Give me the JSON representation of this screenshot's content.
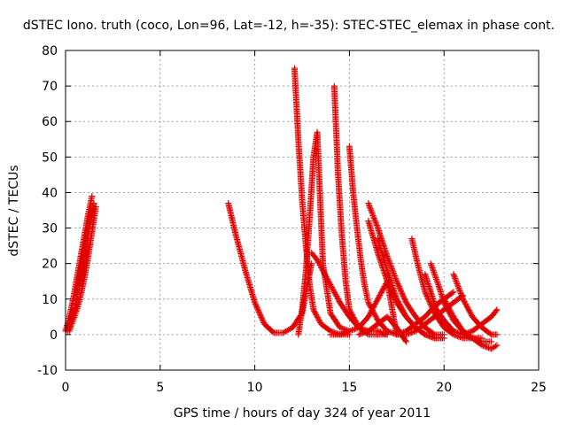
{
  "chart_data": {
    "type": "scatter",
    "title": "dSTEC Iono. truth (coco, Lon=96, Lat=-12, h=-35): STEC-STEC_elemax in phase cont.",
    "xlabel": "GPS time / hours of day 324 of year 2011",
    "ylabel": "dSTEC  / TECUs",
    "xlim": [
      0,
      25
    ],
    "ylim": [
      -10,
      80
    ],
    "xticks": [
      0,
      5,
      10,
      15,
      20,
      25
    ],
    "yticks": [
      -10,
      0,
      10,
      20,
      30,
      40,
      50,
      60,
      70,
      80
    ],
    "xtick_labels": [
      "0",
      "5",
      "10",
      "15",
      "20",
      "25"
    ],
    "ytick_labels": [
      "-10",
      "0",
      "10",
      "20",
      "30",
      "40",
      "50",
      "60",
      "70",
      "80"
    ],
    "grid": true,
    "marker": "+",
    "color": "#ff0000",
    "series": [
      {
        "x": [
          0.0,
          0.2,
          0.4,
          0.6,
          0.8,
          1.0,
          1.2,
          1.4
        ],
        "y": [
          1,
          5,
          10,
          16,
          22,
          28,
          34,
          39
        ]
      },
      {
        "x": [
          0.1,
          0.3,
          0.5,
          0.7,
          0.9,
          1.1,
          1.3,
          1.5
        ],
        "y": [
          1,
          4,
          8,
          13,
          19,
          25,
          31,
          37
        ]
      },
      {
        "x": [
          0.2,
          0.4,
          0.6,
          0.8,
          1.0,
          1.2,
          1.4,
          1.6
        ],
        "y": [
          1,
          4,
          7,
          11,
          16,
          22,
          29,
          36
        ]
      },
      {
        "x": [
          8.6,
          9.0,
          9.5,
          10.0,
          10.5,
          11.0,
          11.5,
          12.0,
          12.5,
          13.0
        ],
        "y": [
          37,
          28,
          18,
          9,
          3,
          0.5,
          0.5,
          2,
          6,
          20
        ]
      },
      {
        "x": [
          12.1,
          12.3,
          12.5,
          12.7,
          12.9,
          13.1,
          13.5,
          14.0,
          14.5,
          15.0
        ],
        "y": [
          75,
          55,
          38,
          25,
          14,
          7,
          3,
          1,
          0,
          0
        ]
      },
      {
        "x": [
          12.3,
          12.5,
          12.7,
          12.9,
          13.1,
          13.3,
          13.6,
          14.0,
          14.5,
          15.0
        ],
        "y": [
          0,
          7,
          18,
          33,
          50,
          57,
          20,
          6,
          2,
          1
        ]
      },
      {
        "x": [
          14.2,
          14.4,
          14.6,
          14.8,
          15.0,
          15.5,
          16.0,
          16.5,
          17.0
        ],
        "y": [
          70,
          45,
          28,
          15,
          7,
          2,
          0,
          0,
          0
        ]
      },
      {
        "x": [
          15.0,
          15.2,
          15.4,
          15.6,
          15.8,
          16.0,
          16.5,
          17.0,
          17.5,
          18.0
        ],
        "y": [
          53,
          40,
          30,
          21,
          14,
          9,
          4,
          1,
          0,
          0
        ]
      },
      {
        "x": [
          13.0,
          13.3,
          13.7,
          14.0,
          14.5,
          15.0,
          15.5,
          16.0,
          16.5,
          17.0
        ],
        "y": [
          23,
          21,
          17,
          14,
          9,
          5,
          2,
          1,
          1,
          0
        ]
      },
      {
        "x": [
          14.0,
          14.5,
          15.0,
          15.5,
          16.0,
          16.5,
          17.0,
          17.5
        ],
        "y": [
          0,
          0,
          1,
          2,
          5,
          10,
          15,
          0
        ]
      },
      {
        "x": [
          16.0,
          16.5,
          17.0,
          17.5,
          18.0,
          18.5,
          19.0,
          19.5,
          20.0
        ],
        "y": [
          37,
          30,
          22,
          15,
          9,
          5,
          2,
          0,
          0
        ]
      },
      {
        "x": [
          16.0,
          16.5,
          17.0,
          17.5,
          18.0,
          18.5,
          19.0,
          19.5,
          20.0
        ],
        "y": [
          32,
          23,
          15,
          9,
          5,
          2,
          0,
          -1,
          -1
        ]
      },
      {
        "x": [
          16.5,
          17.0,
          17.5,
          18.0,
          18.5,
          19.0,
          19.5,
          20.0
        ],
        "y": [
          27,
          18,
          10,
          5,
          2,
          0,
          -1,
          -1
        ]
      },
      {
        "x": [
          15.5,
          16.0,
          16.5,
          17.0,
          17.5,
          18.0
        ],
        "y": [
          0,
          1,
          3,
          5,
          2,
          -2
        ]
      },
      {
        "x": [
          18.3,
          18.6,
          19.0,
          19.5,
          20.0,
          20.5,
          21.0,
          21.5
        ],
        "y": [
          27,
          20,
          12,
          6,
          2,
          0,
          -1,
          -1
        ]
      },
      {
        "x": [
          19.0,
          19.3,
          19.6,
          20.0,
          20.5,
          21.0,
          21.5,
          22.0
        ],
        "y": [
          17,
          12,
          7,
          4,
          1,
          0,
          -1,
          -1
        ]
      },
      {
        "x": [
          19.3,
          19.7,
          20.0,
          20.5,
          21.0,
          21.5,
          22.0,
          22.5
        ],
        "y": [
          20,
          14,
          9,
          4,
          1,
          -1,
          -2,
          -2
        ]
      },
      {
        "x": [
          17.5,
          18.0,
          18.5,
          19.0,
          19.5,
          20.0,
          20.5
        ],
        "y": [
          0,
          1,
          3,
          5,
          8,
          10,
          12
        ]
      },
      {
        "x": [
          20.5,
          21.0,
          21.5,
          22.0,
          22.5,
          22.8
        ],
        "y": [
          17,
          10,
          5,
          2,
          0,
          0
        ]
      },
      {
        "x": [
          20.0,
          20.5,
          21.0,
          21.5,
          22.0,
          22.5,
          22.8
        ],
        "y": [
          10,
          5,
          1,
          -1,
          -3,
          -4,
          -3
        ]
      },
      {
        "x": [
          21.0,
          21.5,
          22.0,
          22.5,
          22.8
        ],
        "y": [
          0,
          1,
          3,
          5,
          7
        ]
      },
      {
        "x": [
          18.0,
          18.5,
          19.0,
          19.5,
          20.0,
          20.5,
          21.0
        ],
        "y": [
          0,
          1,
          3,
          5,
          7,
          9,
          11
        ]
      }
    ]
  }
}
